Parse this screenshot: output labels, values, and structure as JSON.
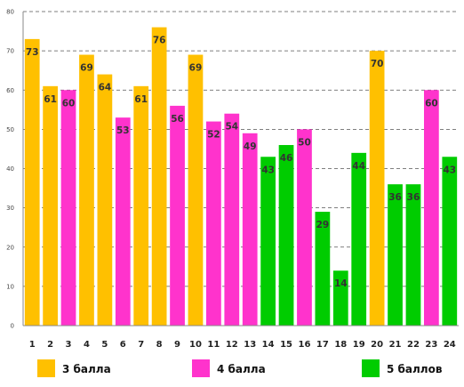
{
  "chart_data": {
    "type": "bar",
    "categories": [
      "1",
      "2",
      "3",
      "4",
      "5",
      "6",
      "7",
      "8",
      "9",
      "10",
      "11",
      "12",
      "13",
      "14",
      "15",
      "16",
      "17",
      "18",
      "19",
      "20",
      "21",
      "22",
      "23",
      "24"
    ],
    "values": [
      73,
      61,
      60,
      69,
      64,
      53,
      61,
      76,
      56,
      69,
      52,
      54,
      49,
      43,
      46,
      50,
      29,
      14,
      44,
      70,
      36,
      36,
      60,
      43
    ],
    "groups": [
      0,
      0,
      1,
      0,
      0,
      1,
      0,
      0,
      1,
      0,
      1,
      1,
      1,
      2,
      2,
      1,
      2,
      2,
      2,
      0,
      2,
      2,
      1,
      2
    ],
    "series": [
      {
        "name": "3 балла",
        "color": "#FFC000"
      },
      {
        "name": "4 балла",
        "color": "#FF33CC"
      },
      {
        "name": "5 баллов",
        "color": "#00CC00"
      }
    ],
    "yticks": [
      "0",
      "10",
      "20",
      "30",
      "40",
      "50",
      "60",
      "70",
      "80"
    ],
    "ylim": [
      0,
      80
    ],
    "grid": true,
    "legend_position": "bottom"
  }
}
